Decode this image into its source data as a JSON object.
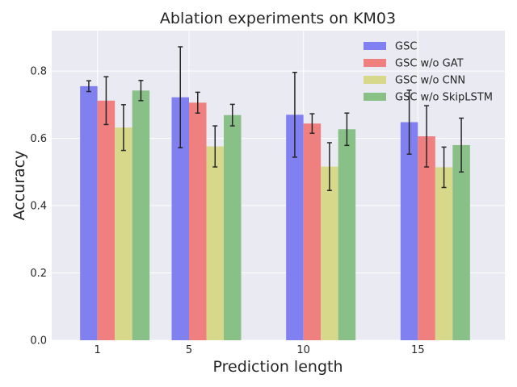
{
  "chart_data": {
    "type": "bar",
    "title": "Ablation experiments on KM03",
    "xlabel": "Prediction length",
    "ylabel": "Accuracy",
    "categories": [
      "1",
      "5",
      "10",
      "15"
    ],
    "ylim": [
      0,
      0.92
    ],
    "yticks": [
      "0.0",
      "0.2",
      "0.4",
      "0.6",
      "0.8"
    ],
    "grid": true,
    "legend_position": "top-right",
    "series": [
      {
        "name": "GSC",
        "color": "#8080f0",
        "values": [
          0.755,
          0.722,
          0.67,
          0.648
        ],
        "errors": [
          0.016,
          0.15,
          0.126,
          0.095
        ]
      },
      {
        "name": "GSC w/o GAT",
        "color": "#f08080",
        "values": [
          0.712,
          0.706,
          0.644,
          0.606
        ],
        "errors": [
          0.071,
          0.031,
          0.029,
          0.091
        ]
      },
      {
        "name": "GSC w/o CNN",
        "color": "#d8d88a",
        "values": [
          0.632,
          0.576,
          0.516,
          0.514
        ],
        "errors": [
          0.068,
          0.061,
          0.071,
          0.06
        ]
      },
      {
        "name": "GSC w/o SkipLSTM",
        "color": "#88c088",
        "values": [
          0.742,
          0.669,
          0.627,
          0.58
        ],
        "errors": [
          0.03,
          0.032,
          0.048,
          0.08
        ]
      }
    ]
  }
}
